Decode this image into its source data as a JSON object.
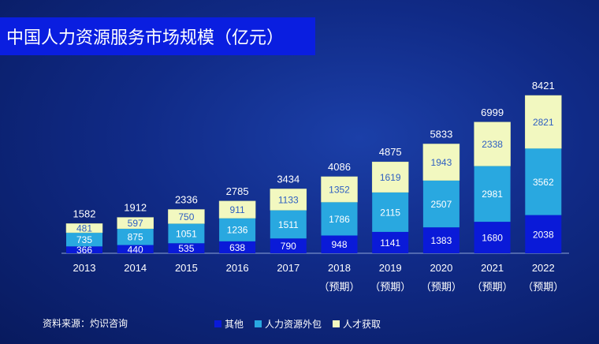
{
  "title": "中国人力资源服务市场规模（亿元）",
  "source": "资料来源：灼识咨询",
  "chart_data": {
    "type": "bar",
    "stacked": true,
    "title": "中国人力资源服务市场规模（亿元）",
    "categories": [
      "2013",
      "2014",
      "2015",
      "2016",
      "2017",
      "2018",
      "2019",
      "2020",
      "2021",
      "2022"
    ],
    "category_notes": [
      "",
      "",
      "",
      "",
      "",
      "（预期）",
      "（预期）",
      "（预期）",
      "（预期）",
      "（预期）"
    ],
    "series": [
      {
        "name": "其他",
        "color": "#0a1ad8",
        "label_color": "#ffffff",
        "values": [
          366,
          440,
          535,
          638,
          790,
          948,
          1141,
          1383,
          1680,
          2038
        ]
      },
      {
        "name": "人力资源外包",
        "color": "#29a8e0",
        "label_color": "#ffffff",
        "values": [
          735,
          875,
          1051,
          1236,
          1511,
          1786,
          2115,
          2507,
          2981,
          3562
        ]
      },
      {
        "name": "人才获取",
        "color": "#f2f8c0",
        "label_color": "#2e5fc2",
        "values": [
          481,
          597,
          750,
          911,
          1133,
          1352,
          1619,
          1943,
          2338,
          2821
        ]
      }
    ],
    "totals": [
      1582,
      1912,
      2336,
      2785,
      3434,
      4086,
      4875,
      5833,
      6999,
      8421
    ],
    "ylim": [
      0,
      8421
    ],
    "legend_position": "bottom-center",
    "xlabel": "",
    "ylabel": ""
  }
}
